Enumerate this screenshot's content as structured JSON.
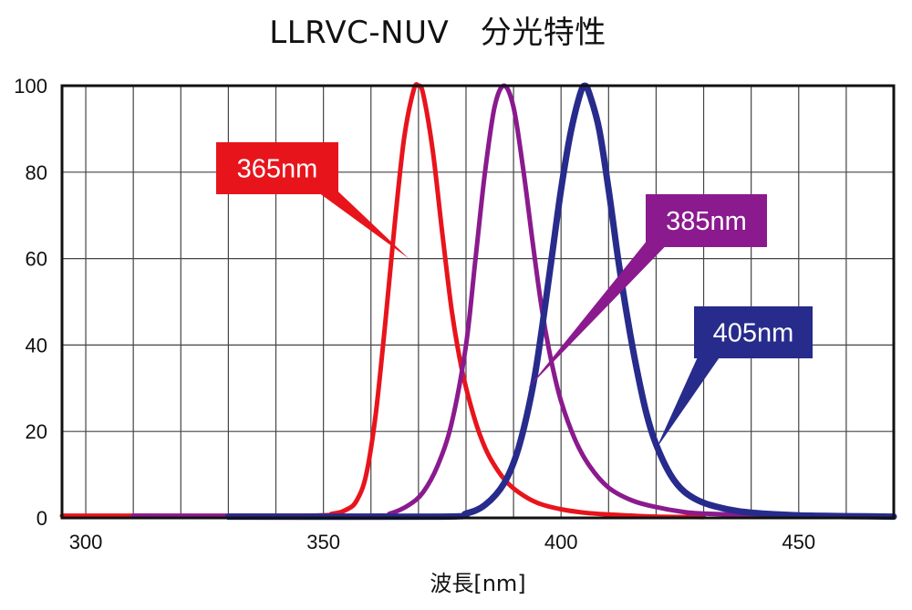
{
  "chart_data": {
    "type": "line",
    "title": "LLRVC-NUV　分光特性",
    "xlabel": "波長[nm]",
    "ylabel": "",
    "xlim": [
      295,
      470
    ],
    "ylim": [
      0,
      100
    ],
    "x_ticks": [
      300,
      350,
      400,
      450
    ],
    "y_ticks": [
      0,
      20,
      40,
      60,
      80,
      100
    ],
    "grid": true,
    "series": [
      {
        "name": "365nm",
        "color": "#e8141c",
        "peak": 370,
        "x": [
          295,
          345,
          352,
          355,
          357,
          359,
          361,
          363,
          365,
          367,
          369,
          370,
          371,
          373,
          375,
          377,
          379,
          381,
          383,
          385,
          388,
          391,
          395,
          400,
          405,
          410,
          420,
          430
        ],
        "y": [
          0.5,
          0.5,
          1,
          2,
          4,
          10,
          24,
          45,
          68,
          88,
          99,
          100,
          98,
          85,
          66,
          48,
          35,
          26,
          19,
          14,
          9,
          6,
          3.5,
          2,
          1.2,
          0.8,
          0.3,
          0.2
        ]
      },
      {
        "name": "385nm",
        "color": "#8b1a8e",
        "peak": 388,
        "x": [
          310,
          360,
          364,
          368,
          371,
          374,
          377,
          380,
          382,
          384,
          386,
          388,
          390,
          392,
          394,
          396,
          398,
          400,
          403,
          406,
          410,
          415,
          420,
          425,
          430,
          445,
          458
        ],
        "y": [
          0.5,
          0.5,
          1,
          3,
          6,
          12,
          22,
          40,
          60,
          80,
          95,
          100,
          95,
          81,
          64,
          48,
          36,
          27,
          18,
          12,
          7,
          4,
          2.5,
          1.5,
          1,
          0.5,
          0.5
        ]
      },
      {
        "name": "405nm",
        "color": "#272b8c",
        "peak": 405,
        "x": [
          330,
          375,
          380,
          384,
          388,
          391,
          394,
          396,
          398,
          400,
          402,
          404,
          405,
          406,
          408,
          410,
          412,
          414,
          416,
          418,
          420,
          423,
          426,
          430,
          435,
          440,
          450,
          470
        ],
        "y": [
          0.3,
          0.3,
          1,
          3,
          8,
          16,
          30,
          44,
          60,
          76,
          89,
          98,
          100,
          98,
          90,
          76,
          60,
          46,
          34,
          24,
          17,
          10,
          6,
          3.5,
          2,
          1.2,
          0.6,
          0.3
        ]
      }
    ],
    "annotations": [
      {
        "text": "365nm",
        "color": "#e8141c",
        "points_to": [
          368,
          60
        ]
      },
      {
        "text": "385nm",
        "color": "#8b1a8e",
        "points_to": [
          393,
          30
        ]
      },
      {
        "text": "405nm",
        "color": "#272b8c",
        "points_to": [
          420,
          16
        ]
      }
    ]
  }
}
